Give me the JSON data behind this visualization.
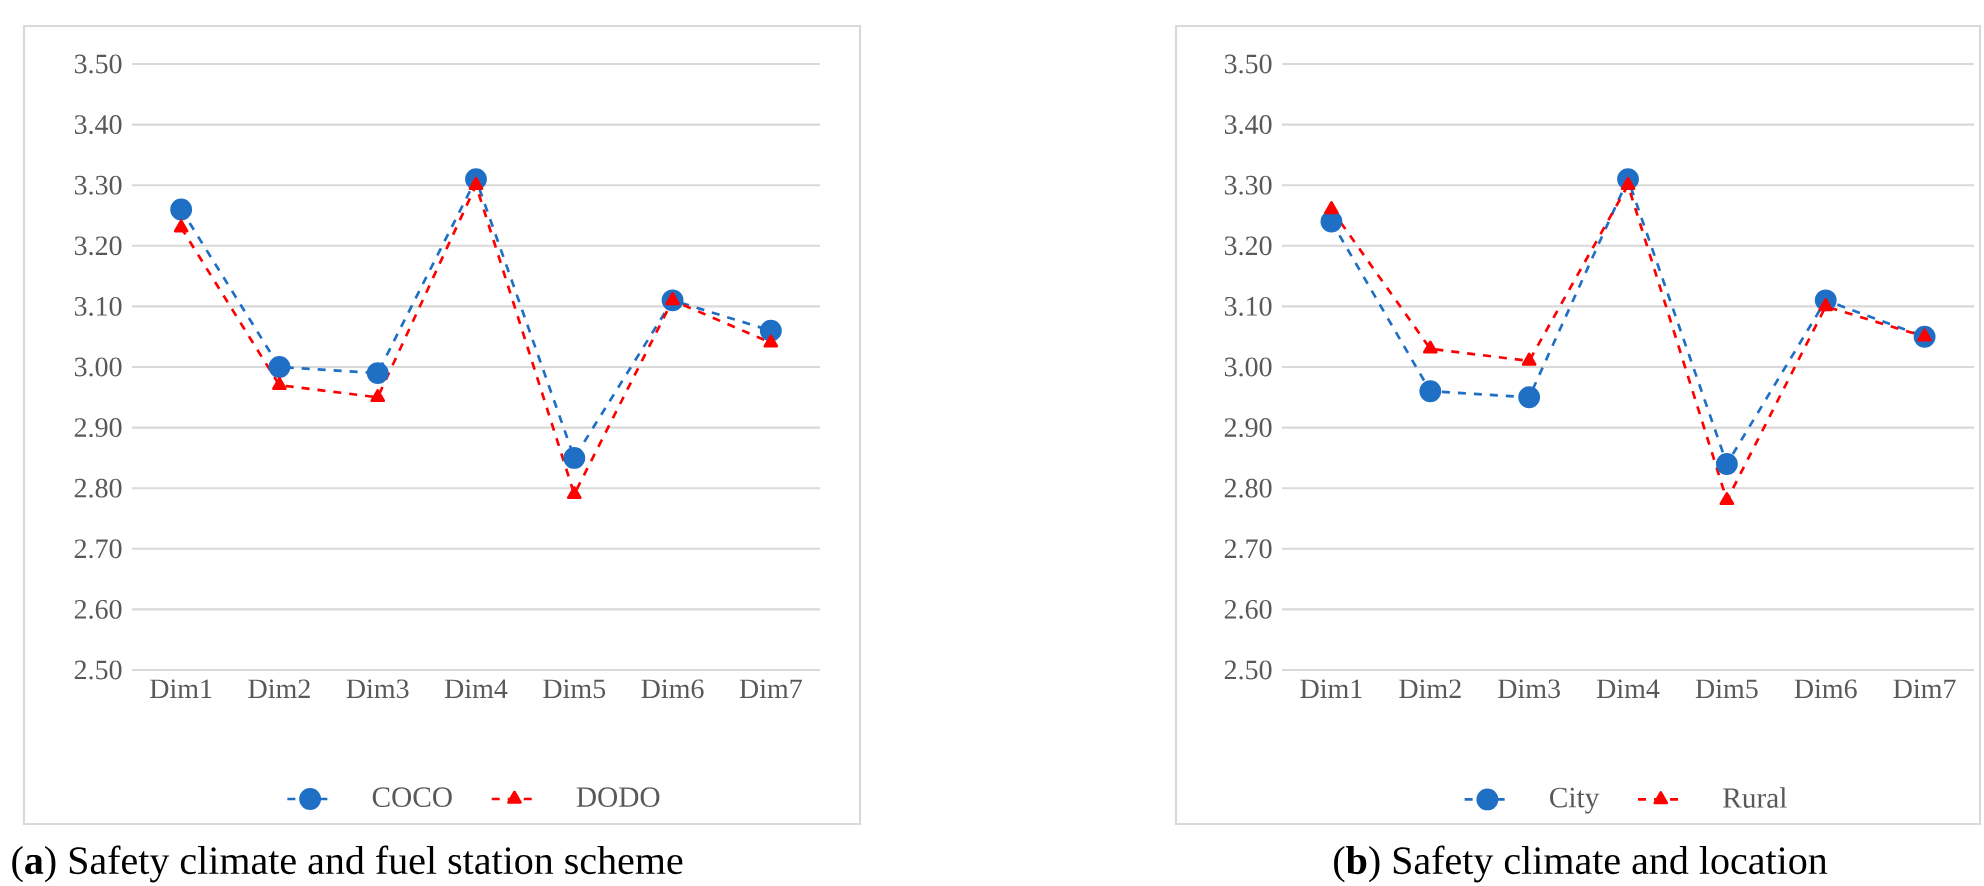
{
  "chart_data": [
    {
      "type": "line",
      "title": "(**a**) Safety climate and fuel station scheme",
      "categories": [
        "Dim1",
        "Dim2",
        "Dim3",
        "Dim4",
        "Dim5",
        "Dim6",
        "Dim7"
      ],
      "ylim": [
        2.5,
        3.5
      ],
      "yticks": [
        {
          "value": 2.5,
          "label": "2.50"
        },
        {
          "value": 2.6,
          "label": "2.60"
        },
        {
          "value": 2.7,
          "label": "2.70"
        },
        {
          "value": 2.8,
          "label": "2.80"
        },
        {
          "value": 2.9,
          "label": "2.90"
        },
        {
          "value": 3.0,
          "label": "3.00"
        },
        {
          "value": 3.1,
          "label": "3.10"
        },
        {
          "value": 3.2,
          "label": "3.20"
        },
        {
          "value": 3.3,
          "label": "3.30"
        },
        {
          "value": 3.4,
          "label": "3.40"
        },
        {
          "value": 3.5,
          "label": "3.50"
        }
      ],
      "grid": "y",
      "legend": "bottom",
      "line_style": "dashed",
      "series": [
        {
          "name": "COCO",
          "color": "#1f6fc5",
          "marker": "circle",
          "values": [
            3.26,
            3.0,
            2.99,
            3.31,
            2.85,
            3.11,
            3.06
          ]
        },
        {
          "name": "DODO",
          "color": "#ff0000",
          "marker": "triangle",
          "values": [
            3.23,
            2.97,
            2.95,
            3.3,
            2.79,
            3.11,
            3.04
          ]
        }
      ]
    },
    {
      "type": "line",
      "title": "(**b**) Safety climate and location",
      "categories": [
        "Dim1",
        "Dim2",
        "Dim3",
        "Dim4",
        "Dim5",
        "Dim6",
        "Dim7"
      ],
      "ylim": [
        2.5,
        3.5
      ],
      "yticks": [
        {
          "value": 2.5,
          "label": "2.50"
        },
        {
          "value": 2.6,
          "label": "2.60"
        },
        {
          "value": 2.7,
          "label": "2.70"
        },
        {
          "value": 2.8,
          "label": "2.80"
        },
        {
          "value": 2.9,
          "label": "2.90"
        },
        {
          "value": 3.0,
          "label": "3.00"
        },
        {
          "value": 3.1,
          "label": "3.10"
        },
        {
          "value": 3.2,
          "label": "3.20"
        },
        {
          "value": 3.3,
          "label": "3.30"
        },
        {
          "value": 3.4,
          "label": "3.40"
        },
        {
          "value": 3.5,
          "label": "3.50"
        }
      ],
      "grid": "y",
      "legend": "bottom",
      "line_style": "dashed",
      "series": [
        {
          "name": "City",
          "color": "#1f6fc5",
          "marker": "circle",
          "values": [
            3.24,
            2.96,
            2.95,
            3.31,
            2.84,
            3.11,
            3.05
          ]
        },
        {
          "name": "Rural",
          "color": "#ff0000",
          "marker": "triangle",
          "values": [
            3.26,
            3.03,
            3.01,
            3.3,
            2.78,
            3.1,
            3.05
          ]
        }
      ]
    }
  ]
}
